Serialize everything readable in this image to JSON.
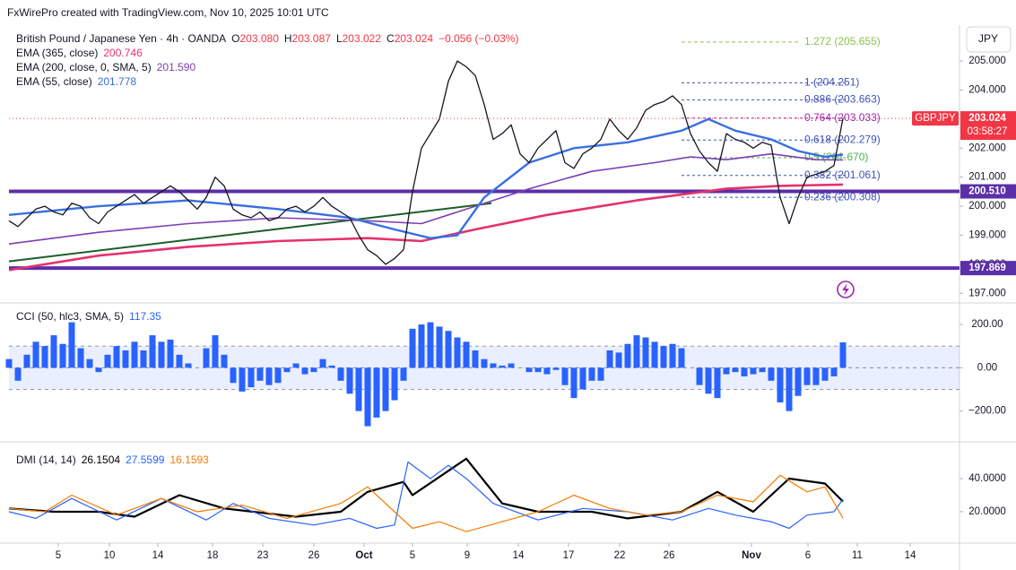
{
  "header": {
    "credit": "FxWirePro created with TradingView.com, Nov 10, 2025 10:01 UTC",
    "currency": "JPY"
  },
  "chart_data": [
    {
      "type": "line",
      "title": "British Pound / Japanese Yen · 4h · OANDA",
      "ohlc": [
        {
          "label": "O",
          "value": "203.080"
        },
        {
          "label": "H",
          "value": "203.087"
        },
        {
          "label": "L",
          "value": "203.022"
        },
        {
          "label": "C",
          "value": "203.024"
        }
      ],
      "change": "−0.056 (−0.03%)",
      "xlim": [
        0,
        106
      ],
      "ylim": [
        196.7,
        206.02
      ],
      "yticks": [
        {
          "value": 197,
          "label": "197.000"
        },
        {
          "value": 198,
          "label": "198.000"
        },
        {
          "value": 199,
          "label": "199.000"
        },
        {
          "value": 200,
          "label": "200.000"
        },
        {
          "value": 201,
          "label": "201.000"
        },
        {
          "value": 202,
          "label": "202.000"
        },
        {
          "value": 203,
          "label": "203.000"
        },
        {
          "value": 204,
          "label": "204.000"
        },
        {
          "value": 205,
          "label": "205.000"
        }
      ],
      "grid": false,
      "series": [
        {
          "name": "GBPJPY",
          "color": "#131722",
          "countdown": "03:58:27",
          "x": [
            0,
            1,
            2,
            3,
            4,
            5,
            6,
            7,
            8,
            9,
            10,
            11,
            12,
            13,
            14,
            15,
            16,
            17,
            18,
            19,
            20,
            21,
            22,
            23,
            24,
            25,
            26,
            27,
            28,
            29,
            30,
            31,
            32,
            33,
            34,
            35,
            36,
            37,
            38,
            39,
            40,
            41,
            42,
            43,
            44,
            45,
            46,
            47,
            48,
            49,
            50,
            51,
            52,
            53,
            54,
            55,
            56,
            57,
            58,
            59,
            60,
            61,
            62,
            63,
            64,
            65,
            66,
            67,
            68,
            69,
            70,
            71,
            72,
            73,
            74,
            75,
            76,
            77,
            78,
            79,
            80,
            81,
            82,
            83,
            84,
            85,
            86,
            87,
            88,
            89,
            90,
            91,
            92,
            93
          ],
          "values": [
            199.5,
            199.3,
            199.6,
            199.9,
            200.0,
            199.8,
            199.7,
            200.1,
            200.0,
            199.6,
            199.4,
            199.8,
            200.0,
            200.2,
            200.4,
            200.1,
            200.3,
            200.5,
            200.7,
            200.5,
            200.2,
            199.9,
            200.3,
            201.0,
            200.7,
            199.9,
            199.7,
            199.6,
            199.8,
            199.5,
            199.6,
            199.9,
            200.0,
            199.8,
            200.0,
            200.3,
            200.0,
            199.8,
            199.6,
            199.0,
            198.5,
            198.3,
            198.0,
            198.2,
            198.5,
            200.5,
            202.0,
            202.5,
            203.0,
            204.3,
            205.0,
            204.8,
            204.5,
            203.5,
            202.3,
            202.5,
            202.8,
            201.8,
            201.5,
            202.0,
            202.3,
            202.6,
            201.5,
            201.3,
            201.8,
            202.0,
            202.3,
            203.0,
            202.6,
            202.3,
            202.7,
            203.3,
            203.5,
            203.6,
            203.8,
            203.5,
            202.5,
            201.9,
            201.5,
            201.2,
            202.5,
            202.3,
            202.2,
            202.0,
            202.2,
            202.1,
            200.3,
            199.4,
            200.3,
            201.0,
            201.1,
            201.2,
            201.4,
            203.024
          ]
        },
        {
          "name": "EMA (365, close)",
          "legend_value": "200.746",
          "color": "#e5326c",
          "x": [
            0,
            10,
            20,
            30,
            40,
            46,
            52,
            60,
            70,
            80,
            86,
            93
          ],
          "values": [
            197.8,
            198.3,
            198.6,
            198.8,
            198.9,
            198.8,
            199.2,
            199.7,
            200.2,
            200.6,
            200.7,
            200.746
          ]
        },
        {
          "name": "EMA (200, close, 0, SMA, 5)",
          "legend_value": "201.590",
          "color": "#7b3fb3",
          "x": [
            0,
            10,
            20,
            30,
            40,
            46,
            52,
            58,
            65,
            72,
            76,
            80,
            85,
            90,
            93
          ],
          "values": [
            198.7,
            199.1,
            199.4,
            199.6,
            199.5,
            199.4,
            200.0,
            200.6,
            201.2,
            201.5,
            201.7,
            201.6,
            201.8,
            201.6,
            201.59
          ]
        },
        {
          "name": "EMA (55, close)",
          "legend_value": "201.778",
          "color": "#3a6fe0",
          "x": [
            0,
            10,
            20,
            30,
            38,
            43,
            47,
            50,
            53,
            58,
            63,
            69,
            75,
            78,
            81,
            85,
            88,
            91,
            93
          ],
          "values": [
            199.7,
            200.0,
            200.2,
            199.9,
            199.6,
            199.2,
            198.9,
            199.0,
            200.3,
            201.5,
            202.0,
            202.2,
            202.6,
            203.0,
            202.6,
            202.3,
            201.9,
            201.7,
            201.778
          ]
        }
      ],
      "trendline": {
        "color": "#1e5e2a",
        "x": [
          0,
          53.8
        ],
        "values": [
          198.1,
          200.1
        ]
      },
      "levels": [
        {
          "value": 200.51,
          "label": "200.510",
          "color": "#5b2fa8"
        },
        {
          "value": 197.869,
          "label": "197.869",
          "color": "#5b2fa8"
        }
      ],
      "fib": [
        {
          "value": 205.655,
          "label": "1.272 (205.655)",
          "color": "#8bc34a"
        },
        {
          "value": 204.251,
          "label": "1 (204.251)",
          "color": "#3f51b5"
        },
        {
          "value": 203.663,
          "label": "0.886 (203.663)",
          "color": "#3f51b5"
        },
        {
          "value": 203.033,
          "label": "0.764 (203.033)",
          "color": "#9c27b0"
        },
        {
          "value": 202.279,
          "label": "0.618 (202.279)",
          "color": "#3f51b5"
        },
        {
          "value": 201.67,
          "label": "0.5 (201.670)",
          "color": "#4caf50"
        },
        {
          "value": 201.061,
          "label": "0.382 (201.061)",
          "color": "#3f51b5"
        },
        {
          "value": 200.308,
          "label": "0.236 (200.308)",
          "color": "#3f51b5"
        }
      ]
    },
    {
      "type": "bar",
      "title": "CCI (50, hlc3, SMA, 5)",
      "color": "#2962ff",
      "xlim": [
        0,
        106
      ],
      "ylim": [
        -338,
        291
      ],
      "yticks": [
        {
          "value": -200,
          "label": "−200.00"
        },
        {
          "value": 0,
          "label": "0.00"
        },
        {
          "value": 200,
          "label": "200.00"
        }
      ],
      "hlines": [
        100,
        0,
        -100
      ],
      "x": [
        0,
        1,
        2,
        3,
        4,
        5,
        6,
        7,
        8,
        9,
        10,
        11,
        12,
        13,
        14,
        15,
        16,
        17,
        18,
        19,
        20,
        21,
        22,
        23,
        24,
        25,
        26,
        27,
        28,
        29,
        30,
        31,
        32,
        33,
        34,
        35,
        36,
        37,
        38,
        39,
        40,
        41,
        42,
        43,
        44,
        45,
        46,
        47,
        48,
        49,
        50,
        51,
        52,
        53,
        54,
        55,
        56,
        57,
        58,
        59,
        60,
        61,
        62,
        63,
        64,
        65,
        66,
        67,
        68,
        69,
        70,
        71,
        72,
        73,
        74,
        75,
        76,
        77,
        78,
        79,
        80,
        81,
        82,
        83,
        84,
        85,
        86,
        87,
        88,
        89,
        90,
        91,
        92,
        93
      ],
      "values": [
        40,
        -60,
        60,
        120,
        100,
        150,
        110,
        210,
        90,
        40,
        -20,
        60,
        100,
        80,
        120,
        80,
        150,
        120,
        130,
        60,
        20,
        0,
        90,
        150,
        60,
        -70,
        -110,
        -90,
        -60,
        -80,
        -70,
        -20,
        20,
        -30,
        -20,
        40,
        10,
        -60,
        -120,
        -200,
        -270,
        -230,
        -200,
        -150,
        -60,
        180,
        200,
        210,
        190,
        170,
        140,
        120,
        80,
        40,
        20,
        10,
        20,
        0,
        -20,
        -20,
        -30,
        -10,
        -80,
        -140,
        -100,
        -60,
        -60,
        80,
        70,
        110,
        150,
        140,
        120,
        100,
        110,
        90,
        0,
        -80,
        -120,
        -140,
        -30,
        -20,
        -40,
        -30,
        -20,
        -60,
        -160,
        -200,
        -130,
        -80,
        -80,
        -60,
        -40,
        117.35
      ]
    },
    {
      "type": "line",
      "title": "DMI (14, 14)",
      "xlim": [
        0,
        106
      ],
      "ylim": [
        1.6,
        61.6
      ],
      "yticks": [
        {
          "value": 20,
          "label": "20.0000"
        },
        {
          "value": 40,
          "label": "40.0000"
        }
      ],
      "xticks": [
        {
          "value": 5.5,
          "label": "5"
        },
        {
          "value": 11.2,
          "label": "10"
        },
        {
          "value": 16.6,
          "label": "14"
        },
        {
          "value": 22.7,
          "label": "18"
        },
        {
          "value": 28.3,
          "label": "23"
        },
        {
          "value": 34,
          "label": "26"
        },
        {
          "value": 39.6,
          "label": "Oct"
        },
        {
          "value": 45,
          "label": "5"
        },
        {
          "value": 51.1,
          "label": "9"
        },
        {
          "value": 56.8,
          "label": "14"
        },
        {
          "value": 62.4,
          "label": "17"
        },
        {
          "value": 68.1,
          "label": "22"
        },
        {
          "value": 73.6,
          "label": "26"
        },
        {
          "value": 82.8,
          "label": "Nov"
        },
        {
          "value": 89.1,
          "label": "6"
        },
        {
          "value": 94.6,
          "label": "11"
        },
        {
          "value": 100.5,
          "label": "14"
        }
      ],
      "series": [
        {
          "name": "ADX",
          "color": "#000000",
          "x": [
            0,
            5,
            10,
            14,
            19,
            24,
            32,
            37,
            40,
            44,
            45,
            51,
            55,
            59,
            65,
            69,
            75,
            79,
            83,
            87,
            91,
            93
          ],
          "values": [
            22,
            20,
            20,
            17,
            30,
            22,
            17,
            20,
            32,
            38,
            30,
            52,
            25,
            20,
            20,
            16,
            20,
            32,
            20,
            40,
            37,
            26.1504
          ]
        },
        {
          "name": "+DI",
          "color": "#2962ff",
          "x": [
            0,
            3,
            7,
            12,
            17,
            22,
            25,
            29,
            34,
            38,
            41,
            43,
            44.5,
            47,
            49,
            51,
            54,
            59,
            64,
            69,
            74,
            78,
            81,
            85,
            87,
            89,
            92,
            93
          ],
          "values": [
            20,
            16,
            28,
            15,
            28,
            15,
            25,
            16,
            12,
            16,
            10,
            12,
            50,
            40,
            48,
            40,
            25,
            15,
            22,
            20,
            15,
            22,
            18,
            14,
            10,
            18,
            20,
            27.5599
          ]
        },
        {
          "name": "-DI",
          "color": "#f57c00",
          "x": [
            0,
            4,
            7,
            12,
            17,
            21,
            26,
            31,
            37,
            40,
            43,
            45,
            48,
            51,
            55,
            59,
            63,
            67,
            71,
            75,
            79,
            83,
            86,
            89,
            91,
            93
          ],
          "values": [
            22,
            20,
            30,
            18,
            28,
            20,
            24,
            16,
            25,
            35,
            20,
            10,
            14,
            8,
            14,
            20,
            30,
            22,
            18,
            20,
            30,
            26,
            42,
            32,
            35,
            16.1593
          ]
        }
      ]
    }
  ]
}
